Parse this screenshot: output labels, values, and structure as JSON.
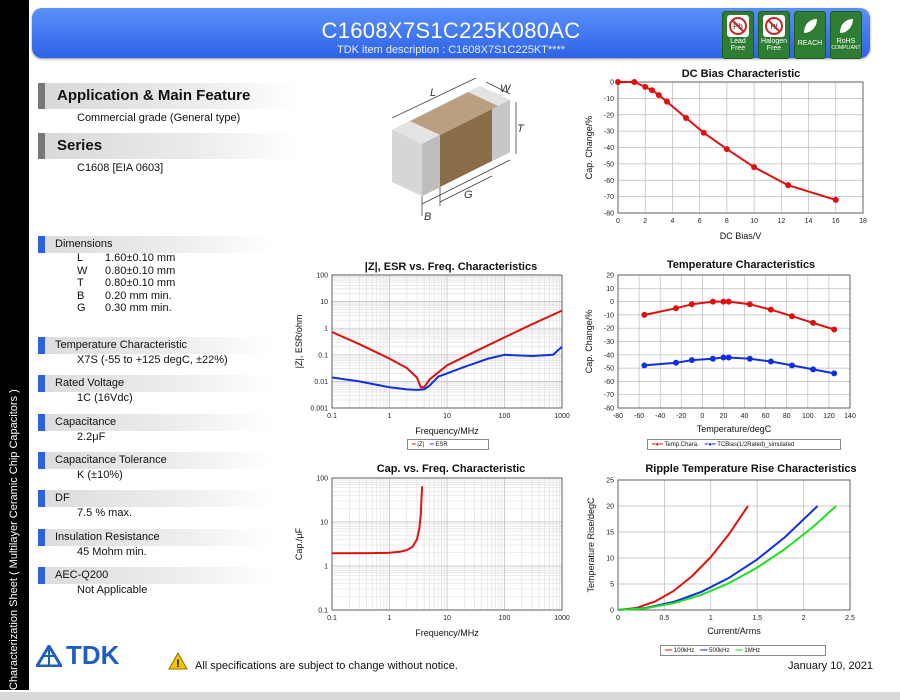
{
  "header": {
    "part_number": "C1608X7S1C225K080AC",
    "item_description": "TDK item description : C1608X7S1C225KT****",
    "badges": [
      {
        "icon": "lead-free-icon",
        "label1": "Lead",
        "label2": "Free"
      },
      {
        "icon": "halogen-free-icon",
        "label1": "Halogen",
        "label2": "Free"
      },
      {
        "icon": "reach-leaf-icon",
        "label1": "REACH",
        "label2": ""
      },
      {
        "icon": "rohs-leaf-icon",
        "label1": "RoHS",
        "label2": "COMPLIANT"
      }
    ]
  },
  "side_label": "Characterization Sheet ( Multilayer Ceramic Chip Capacitors )",
  "app": {
    "heading": "Application & Main Feature",
    "text": "Commercial grade (General type)"
  },
  "series": {
    "heading": "Series",
    "text": "C1608 [EIA 0603]"
  },
  "diagram_labels": {
    "L": "L",
    "W": "W",
    "T": "T",
    "B": "B",
    "G": "G"
  },
  "dimensions": {
    "heading": "Dimensions",
    "rows": [
      {
        "k": "L",
        "v": "1.60±0.10 mm"
      },
      {
        "k": "W",
        "v": "0.80±0.10 mm"
      },
      {
        "k": "T",
        "v": "0.80±0.10 mm"
      },
      {
        "k": "B",
        "v": "0.20 mm min."
      },
      {
        "k": "G",
        "v": "0.30 mm min."
      }
    ]
  },
  "specs": [
    {
      "heading": "Temperature Characteristic",
      "value": "X7S (-55 to +125 degC, ±22%)"
    },
    {
      "heading": "Rated Voltage",
      "value": "1C (16Vdc)"
    },
    {
      "heading": "Capacitance",
      "value": "2.2μF"
    },
    {
      "heading": "Capacitance Tolerance",
      "value": "K (±10%)"
    },
    {
      "heading": "DF",
      "value": "7.5 % max."
    },
    {
      "heading": "Insulation Resistance",
      "value": "45 Mohm min."
    },
    {
      "heading": "AEC-Q200",
      "value": "Not Applicable"
    }
  ],
  "footer": {
    "logo": "TDK",
    "notice": "All specifications are subject to change without notice.",
    "date": "January 10, 2021"
  },
  "chart_data": [
    {
      "id": "dcbias",
      "type": "line",
      "title": "DC Bias Characteristic",
      "xlabel": "DC Bias/V",
      "ylabel": "Cap. Change/%",
      "xlim": [
        0,
        18
      ],
      "ylim": [
        -80,
        0
      ],
      "xticks": [
        0,
        2,
        4,
        6,
        8,
        10,
        12,
        14,
        16,
        18
      ],
      "yticks": [
        0,
        -10,
        -20,
        -30,
        -40,
        -50,
        -60,
        -70,
        -80
      ],
      "grid": true,
      "series": [
        {
          "color": "#e01010",
          "markers": true,
          "x": [
            0,
            1.2,
            2,
            2.5,
            3,
            3.6,
            5,
            6.3,
            8,
            10,
            12.5,
            16
          ],
          "y": [
            0,
            0,
            -3,
            -5,
            -8,
            -12,
            -22,
            -31,
            -41,
            -52,
            -63,
            -72
          ]
        }
      ]
    },
    {
      "id": "zesr",
      "type": "line",
      "title": "|Z|, ESR vs. Freq. Characteristics",
      "xlabel": "Frequency/MHz",
      "ylabel": "|Z|, ESR/ohm",
      "xscale": "log",
      "yscale": "log",
      "xlim": [
        0.1,
        1000
      ],
      "ylim": [
        0.001,
        100
      ],
      "xticks": [
        0.1,
        1,
        10,
        100,
        1000
      ],
      "xticklabels": [
        "0.1",
        "1",
        "10",
        "100",
        "1000"
      ],
      "yticks": [
        0.001,
        0.01,
        0.1,
        1,
        10,
        100
      ],
      "yticklabels": [
        "0.001",
        "0.01",
        "0.1",
        "1",
        "10",
        "100"
      ],
      "grid": true,
      "legend": "bottom",
      "series": [
        {
          "name": "|Z|",
          "color": "#e01010",
          "x": [
            0.1,
            0.3,
            1,
            2,
            3,
            3.5,
            4,
            5,
            10,
            30,
            100,
            300,
            1000
          ],
          "y": [
            0.72,
            0.25,
            0.072,
            0.032,
            0.014,
            0.006,
            0.006,
            0.012,
            0.04,
            0.13,
            0.45,
            1.4,
            4.6
          ]
        },
        {
          "name": "ESR",
          "color": "#1030e0",
          "x": [
            0.1,
            0.3,
            1,
            2,
            3,
            4,
            5,
            7,
            10,
            20,
            50,
            100,
            300,
            700,
            1000
          ],
          "y": [
            0.014,
            0.01,
            0.006,
            0.005,
            0.0048,
            0.005,
            0.007,
            0.015,
            0.02,
            0.035,
            0.07,
            0.1,
            0.09,
            0.1,
            0.2
          ]
        }
      ]
    },
    {
      "id": "temp",
      "type": "line",
      "title": "Temperature Characteristics",
      "xlabel": "Temperature/degC",
      "ylabel": "Cap. Change/%",
      "xlim": [
        -80,
        140
      ],
      "ylim": [
        -80,
        20
      ],
      "xticks": [
        -80,
        -60,
        -40,
        -20,
        0,
        20,
        40,
        60,
        80,
        100,
        120,
        140
      ],
      "yticks": [
        20,
        10,
        0,
        -10,
        -20,
        -30,
        -40,
        -50,
        -60,
        -70,
        -80
      ],
      "grid": true,
      "legend": "bottom",
      "series": [
        {
          "name": "Temp.Chara.",
          "color": "#e01010",
          "markers": true,
          "x": [
            -55,
            -25,
            -10,
            10,
            20,
            25,
            45,
            65,
            85,
            105,
            125
          ],
          "y": [
            -10,
            -5,
            -2,
            0,
            0,
            0,
            -2,
            -6,
            -11,
            -16,
            -21
          ]
        },
        {
          "name": "TCBias(1/2Rated)_simulated",
          "color": "#1030e0",
          "markers": true,
          "x": [
            -55,
            -25,
            -10,
            10,
            20,
            25,
            45,
            65,
            85,
            105,
            125
          ],
          "y": [
            -48,
            -46,
            -44,
            -43,
            -42,
            -42,
            -43,
            -45,
            -48,
            -51,
            -54
          ]
        }
      ]
    },
    {
      "id": "capfreq",
      "type": "line",
      "title": "Cap. vs. Freq. Characteristic",
      "xlabel": "Frequency/MHz",
      "ylabel": "Cap./μF",
      "xscale": "log",
      "yscale": "log",
      "xlim": [
        0.1,
        1000
      ],
      "ylim": [
        0.1,
        100
      ],
      "xticks": [
        0.1,
        1,
        10,
        100,
        1000
      ],
      "xticklabels": [
        "0.1",
        "1",
        "10",
        "100",
        "1000"
      ],
      "yticks": [
        0.1,
        1,
        10,
        100
      ],
      "yticklabels": [
        "0.1",
        "1",
        "10",
        "100"
      ],
      "grid": true,
      "series": [
        {
          "color": "#e01010",
          "x": [
            0.1,
            0.5,
            1,
            1.5,
            2,
            2.5,
            3,
            3.3,
            3.5,
            3.6,
            3.7
          ],
          "y": [
            1.95,
            1.96,
            2.0,
            2.1,
            2.3,
            2.7,
            4,
            7,
            15,
            35,
            65
          ]
        }
      ]
    },
    {
      "id": "ripple",
      "type": "line",
      "title": "Ripple Temperature Rise Characteristics",
      "xlabel": "Current/Arms",
      "ylabel": "Temperature Rise/degC",
      "xlim": [
        0,
        2.5
      ],
      "ylim": [
        0,
        25
      ],
      "xticks": [
        0,
        0.5,
        1,
        1.5,
        2,
        2.5
      ],
      "yticks": [
        0,
        5,
        10,
        15,
        20,
        25
      ],
      "grid": true,
      "legend": "bottom",
      "series": [
        {
          "name": "100kHz",
          "color": "#e01010",
          "x": [
            0,
            0.2,
            0.4,
            0.6,
            0.8,
            1.0,
            1.2,
            1.4
          ],
          "y": [
            0,
            0.41,
            1.63,
            3.67,
            6.53,
            10.2,
            14.69,
            20
          ]
        },
        {
          "name": "500kHz",
          "color": "#1030e0",
          "x": [
            0,
            0.3,
            0.6,
            0.9,
            1.2,
            1.5,
            1.8,
            2.15
          ],
          "y": [
            0,
            0.39,
            1.56,
            3.5,
            6.23,
            9.73,
            14.02,
            20
          ]
        },
        {
          "name": "1MHz",
          "color": "#20e020",
          "x": [
            0,
            0.3,
            0.6,
            0.9,
            1.2,
            1.5,
            1.8,
            2.1,
            2.35
          ],
          "y": [
            0,
            0.33,
            1.3,
            2.93,
            5.21,
            8.15,
            11.73,
            15.97,
            20
          ]
        }
      ]
    }
  ]
}
